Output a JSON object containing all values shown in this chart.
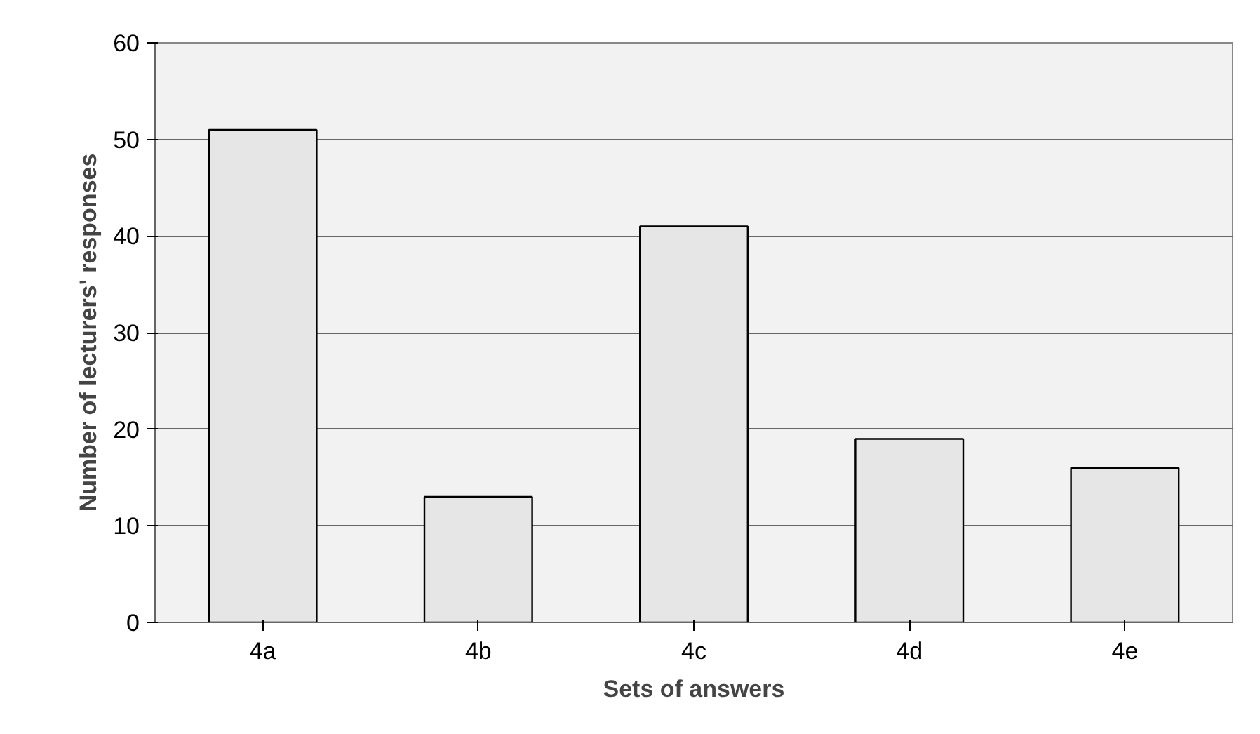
{
  "chart_data": {
    "type": "bar",
    "xlabel": "Sets of answers",
    "ylabel": "Number of lecturers' responses",
    "categories": [
      "4a",
      "4b",
      "4c",
      "4d",
      "4e"
    ],
    "values": [
      51,
      13,
      41,
      19,
      16
    ],
    "color": "#e6e6e6",
    "ylim": [
      0,
      60
    ],
    "yticks": [
      0,
      10,
      20,
      30,
      40,
      50,
      60
    ],
    "grid": "y"
  }
}
